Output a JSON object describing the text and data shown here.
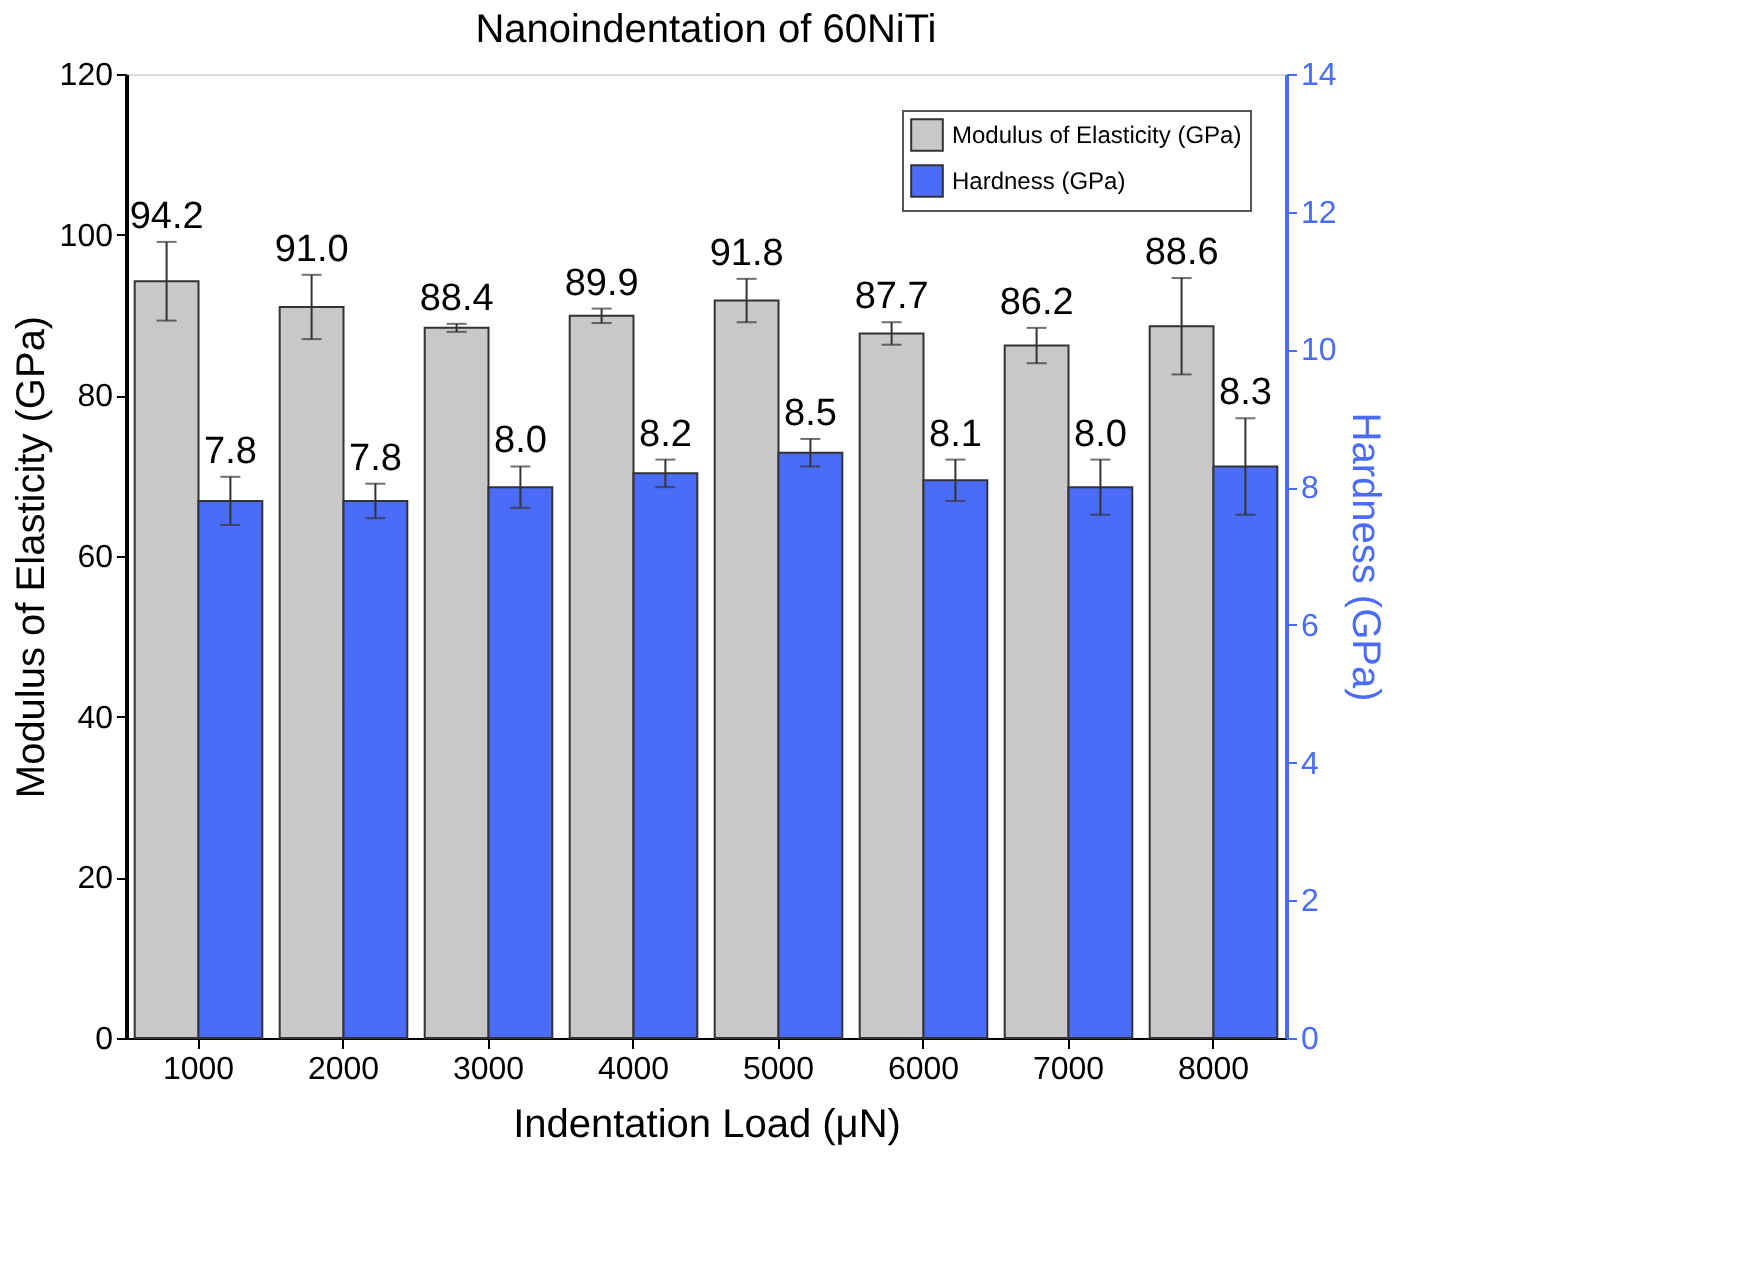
{
  "chart_data": {
    "type": "bar",
    "title": "Nanoindentation of 60NiTi",
    "xlabel": "Indentation Load (μN)",
    "ylabel": "Modulus of Elasticity (GPa)",
    "y2label": "Hardness (GPa)",
    "categories": [
      "1000",
      "2000",
      "3000",
      "4000",
      "5000",
      "6000",
      "7000",
      "8000"
    ],
    "series": [
      {
        "name": "Modulus of Elasticity (GPa)",
        "color": "#c8c8c8",
        "values": [
          94.2,
          91.0,
          88.4,
          89.9,
          91.8,
          87.7,
          86.2,
          88.6
        ],
        "value_labels": [
          "94.2",
          "91.0",
          "88.4",
          "89.9",
          "91.8",
          "87.7",
          "86.2",
          "88.6"
        ],
        "errors": [
          4.9,
          4.0,
          0.5,
          0.9,
          2.7,
          1.4,
          2.2,
          6.0
        ]
      },
      {
        "name": "Hardness (GPa)",
        "color": "#4a6cf7",
        "axis": "y2",
        "values": [
          7.8,
          7.8,
          8.0,
          8.2,
          8.5,
          8.1,
          8.0,
          8.3
        ],
        "value_labels": [
          "7.8",
          "7.8",
          "8.0",
          "8.2",
          "8.5",
          "8.1",
          "8.0",
          "8.3"
        ],
        "errors": [
          0.35,
          0.25,
          0.3,
          0.2,
          0.2,
          0.3,
          0.4,
          0.7
        ]
      }
    ],
    "ylim": [
      0,
      120
    ],
    "yticks": [
      0,
      20,
      40,
      60,
      80,
      100,
      120
    ],
    "y2lim": [
      0,
      14
    ],
    "y2ticks": [
      0,
      2,
      4,
      6,
      8,
      10,
      12,
      14
    ],
    "legend": "top right",
    "grid": false
  }
}
